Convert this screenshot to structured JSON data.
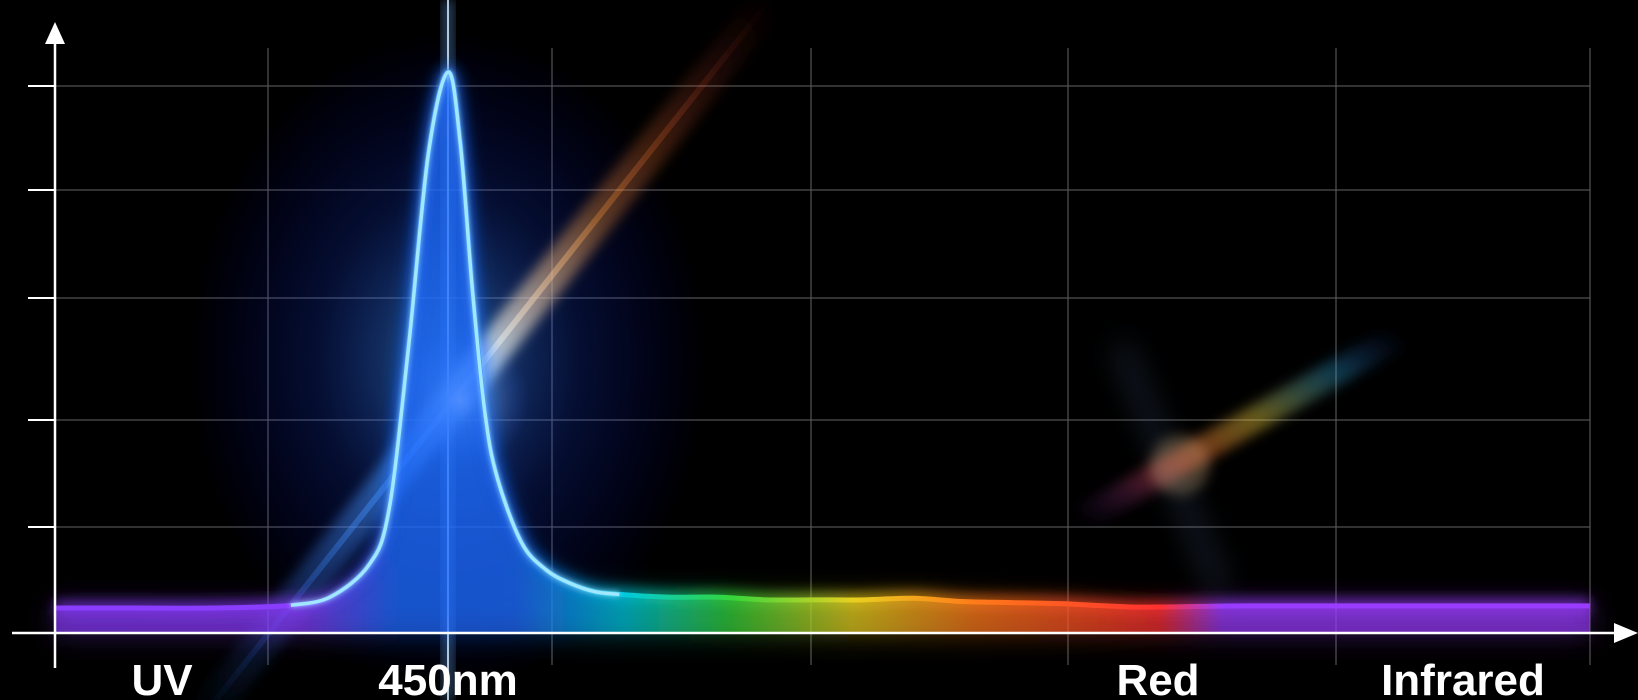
{
  "chart_data": {
    "type": "line",
    "title": "",
    "xlabel": "",
    "ylabel": "",
    "grid": true,
    "x_category_labels": [
      "UV",
      "450nm",
      "Red",
      "Infrared"
    ],
    "x_range_nm": [
      350,
      950
    ],
    "y_range": [
      0,
      1
    ],
    "series": [
      {
        "x": [
          350,
          370,
          390,
          410,
          420,
          430,
          435,
          440,
          445,
          450,
          455,
          460,
          465,
          470,
          480,
          490,
          500,
          510,
          520,
          540,
          560,
          580,
          600,
          620,
          640,
          660,
          680,
          700,
          720,
          740,
          760,
          780,
          800,
          840,
          880,
          920,
          950
        ],
        "y": [
          0.02,
          0.02,
          0.02,
          0.025,
          0.04,
          0.1,
          0.2,
          0.5,
          0.85,
          1.0,
          0.87,
          0.6,
          0.38,
          0.26,
          0.14,
          0.09,
          0.065,
          0.05,
          0.045,
          0.04,
          0.04,
          0.035,
          0.035,
          0.035,
          0.038,
          0.032,
          0.03,
          0.028,
          0.025,
          0.022,
          0.022,
          0.023,
          0.024,
          0.024,
          0.024,
          0.024,
          0.024
        ]
      }
    ],
    "colors": {
      "background": "#000000",
      "grid": "#5a5a5a",
      "axis": "#ffffff",
      "peak_line": "#9fe8ff",
      "uv": "#8a3cff",
      "blue": "#1f6bff",
      "cyan": "#00c8e0",
      "green": "#34d63a",
      "yellow": "#e8d020",
      "orange": "#ff7a1a",
      "red": "#ff3030",
      "infrared": "#9a3cff"
    }
  }
}
